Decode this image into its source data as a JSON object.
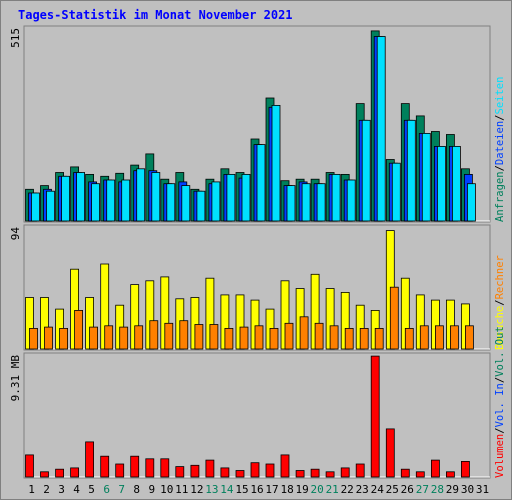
{
  "colors": {
    "background": "#c0c0c0",
    "panel": "#c0c0c0",
    "grid": "#a0a0a0",
    "title": "#0000ff",
    "hits": "#00805c",
    "files": "#0040ff",
    "pages": "#00e0ff",
    "visits": "#ffff00",
    "sites": "#ff8000",
    "kbytes": "#ff0000",
    "weekend_label": "#00805c",
    "weekday_label": "#000000"
  },
  "chart_data": {
    "type": "bar",
    "title": "Tages-Statistik im Monat November 2021",
    "categories": [
      "1",
      "2",
      "3",
      "4",
      "5",
      "6",
      "7",
      "8",
      "9",
      "10",
      "11",
      "12",
      "13",
      "14",
      "15",
      "16",
      "17",
      "18",
      "19",
      "20",
      "21",
      "22",
      "23",
      "24",
      "25",
      "26",
      "27",
      "28",
      "29",
      "30",
      "31"
    ],
    "weekend_days": [
      "6",
      "7",
      "13",
      "14",
      "20",
      "21",
      "27",
      "28"
    ],
    "panels": [
      {
        "id": "requests",
        "ymax_label": "515",
        "ymax": 515,
        "legend_text": [
          {
            "text": "Anfragen",
            "color": "#00805c"
          },
          {
            "text": "/",
            "color": "#000000"
          },
          {
            "text": "Dateien",
            "color": "#0040ff"
          },
          {
            "text": "/",
            "color": "#000000"
          },
          {
            "text": "Seiten",
            "color": "#00e0ff"
          }
        ],
        "series": [
          {
            "name": "Anfragen",
            "color": "#00805c",
            "values": [
              85,
              95,
              130,
              145,
              125,
              120,
              128,
              150,
              180,
              112,
              130,
              85,
              112,
              140,
              130,
              220,
              330,
              108,
              112,
              112,
              130,
              125,
              315,
              510,
              165,
              315,
              282,
              240,
              232,
              140,
              null
            ]
          },
          {
            "name": "Dateien",
            "color": "#0040ff",
            "values": [
              75,
              85,
              120,
              130,
              105,
              110,
              105,
              135,
              135,
              100,
              105,
              80,
              100,
              125,
              115,
              205,
              305,
              95,
              105,
              100,
              125,
              110,
              270,
              495,
              155,
              270,
              235,
              200,
              200,
              125,
              null
            ]
          },
          {
            "name": "Seiten",
            "color": "#00e0ff",
            "values": [
              75,
              80,
              120,
              130,
              100,
              110,
              110,
              140,
              130,
              100,
              95,
              80,
              105,
              125,
              125,
              205,
              310,
              95,
              100,
              100,
              125,
              110,
              270,
              495,
              155,
              270,
              235,
              200,
              200,
              100,
              null
            ]
          }
        ]
      },
      {
        "id": "visits",
        "ymax_label": "94",
        "ymax": 94,
        "legend_text": [
          {
            "text": "Besuche",
            "color": "#ffff00"
          },
          {
            "text": "/",
            "color": "#000000"
          },
          {
            "text": "Rechner",
            "color": "#ff8000"
          }
        ],
        "series": [
          {
            "name": "Besuche",
            "color": "#ffff00",
            "values": [
              40,
              40,
              31,
              62,
              40,
              66,
              34,
              50,
              53,
              56,
              39,
              40,
              55,
              42,
              42,
              38,
              31,
              53,
              47,
              58,
              47,
              44,
              34,
              30,
              92,
              55,
              42,
              38,
              38,
              35,
              null
            ]
          },
          {
            "name": "Rechner",
            "color": "#ff8000",
            "values": [
              16,
              17,
              16,
              30,
              17,
              18,
              17,
              18,
              22,
              20,
              22,
              19,
              19,
              16,
              17,
              18,
              16,
              20,
              25,
              20,
              18,
              16,
              16,
              16,
              48,
              16,
              18,
              18,
              18,
              18,
              null
            ]
          }
        ]
      },
      {
        "id": "volume",
        "ymax_label": "9.31 MB",
        "ymax": 9.31,
        "legend_text": [
          {
            "text": "Volumen",
            "color": "#ff0000"
          },
          {
            "text": "/",
            "color": "#000000"
          },
          {
            "text": "Vol. In",
            "color": "#0040ff"
          },
          {
            "text": "/",
            "color": "#000000"
          },
          {
            "text": "Vol. Out",
            "color": "#00805c"
          }
        ],
        "series": [
          {
            "name": "Volumen",
            "color": "#ff0000",
            "values": [
              1.7,
              0.4,
              0.6,
              0.7,
              2.7,
              1.6,
              1.0,
              1.6,
              1.4,
              1.4,
              0.8,
              0.9,
              1.3,
              0.7,
              0.5,
              1.1,
              1.0,
              1.7,
              0.5,
              0.6,
              0.4,
              0.7,
              1.0,
              9.3,
              3.7,
              0.6,
              0.4,
              1.3,
              0.4,
              1.2,
              null
            ]
          }
        ]
      }
    ]
  }
}
